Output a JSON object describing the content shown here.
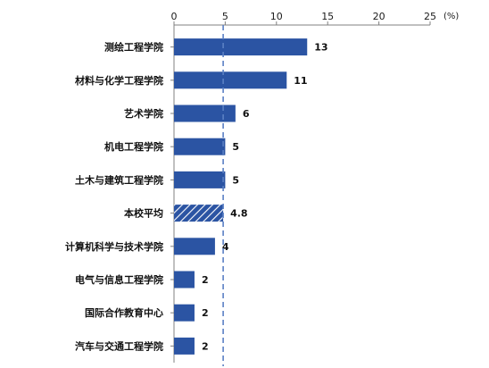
{
  "chart_data": {
    "type": "bar",
    "orientation": "horizontal",
    "categories": [
      "测绘工程学院",
      "材料与化学工程学院",
      "艺术学院",
      "机电工程学院",
      "土木与建筑工程学院",
      "本校平均",
      "计算机科学与技术学院",
      "电气与信息工程学院",
      "国际合作教育中心",
      "汽车与交通工程学院"
    ],
    "values": [
      13,
      11,
      6,
      5,
      5,
      4.8,
      4,
      2,
      2,
      2
    ],
    "value_labels": [
      "13",
      "11",
      "6",
      "5",
      "5",
      "4.8",
      "4",
      "2",
      "2",
      "2"
    ],
    "highlight_category": "本校平均",
    "reference_line": 4.8,
    "xlim": [
      0,
      25
    ],
    "xticks": [
      "0",
      "5",
      "10",
      "15",
      "20",
      "25"
    ],
    "x_unit": "(%)",
    "axis_position": "top",
    "grid": false,
    "legend": false,
    "colors": {
      "bar": "#2b54a3",
      "hatch": "#ffffff",
      "reference_line": "#5a80c4",
      "axis": "#808080"
    }
  }
}
